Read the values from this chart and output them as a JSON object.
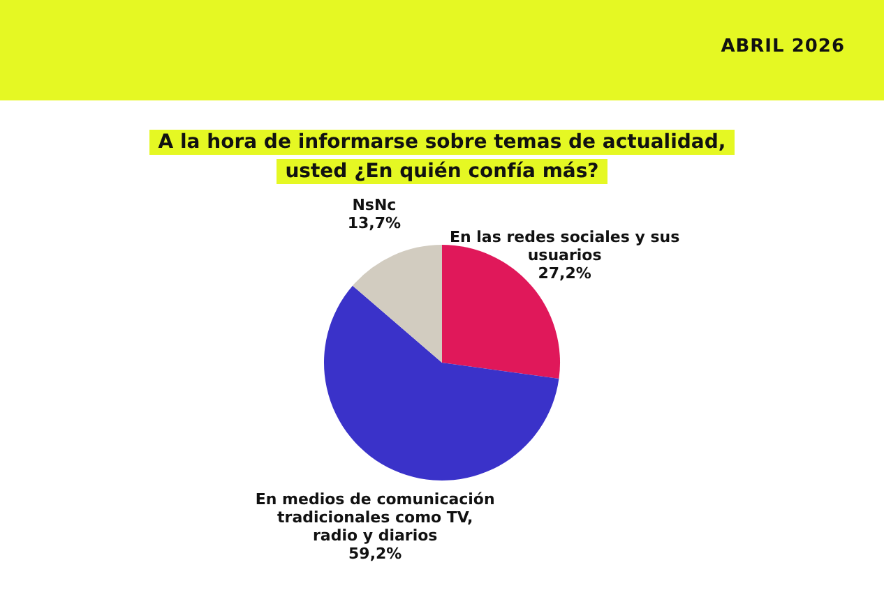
{
  "chart_data": {
    "type": "pie",
    "title": "A la hora de informarse sobre temas de actualidad, usted ¿En quién confía más?",
    "categories": [
      "En las redes sociales y sus usuarios",
      "En medios de comunicación tradicionales como TV, radio y diarios",
      "NsNc"
    ],
    "values": [
      27.2,
      59.2,
      13.7
    ],
    "value_labels": [
      "27,2%",
      "59,2%",
      "13,7%"
    ],
    "colors": [
      "#e0185a",
      "#3a32c9",
      "#d2ccc0"
    ],
    "annotations": [
      "ABRIL 2026"
    ]
  }
}
